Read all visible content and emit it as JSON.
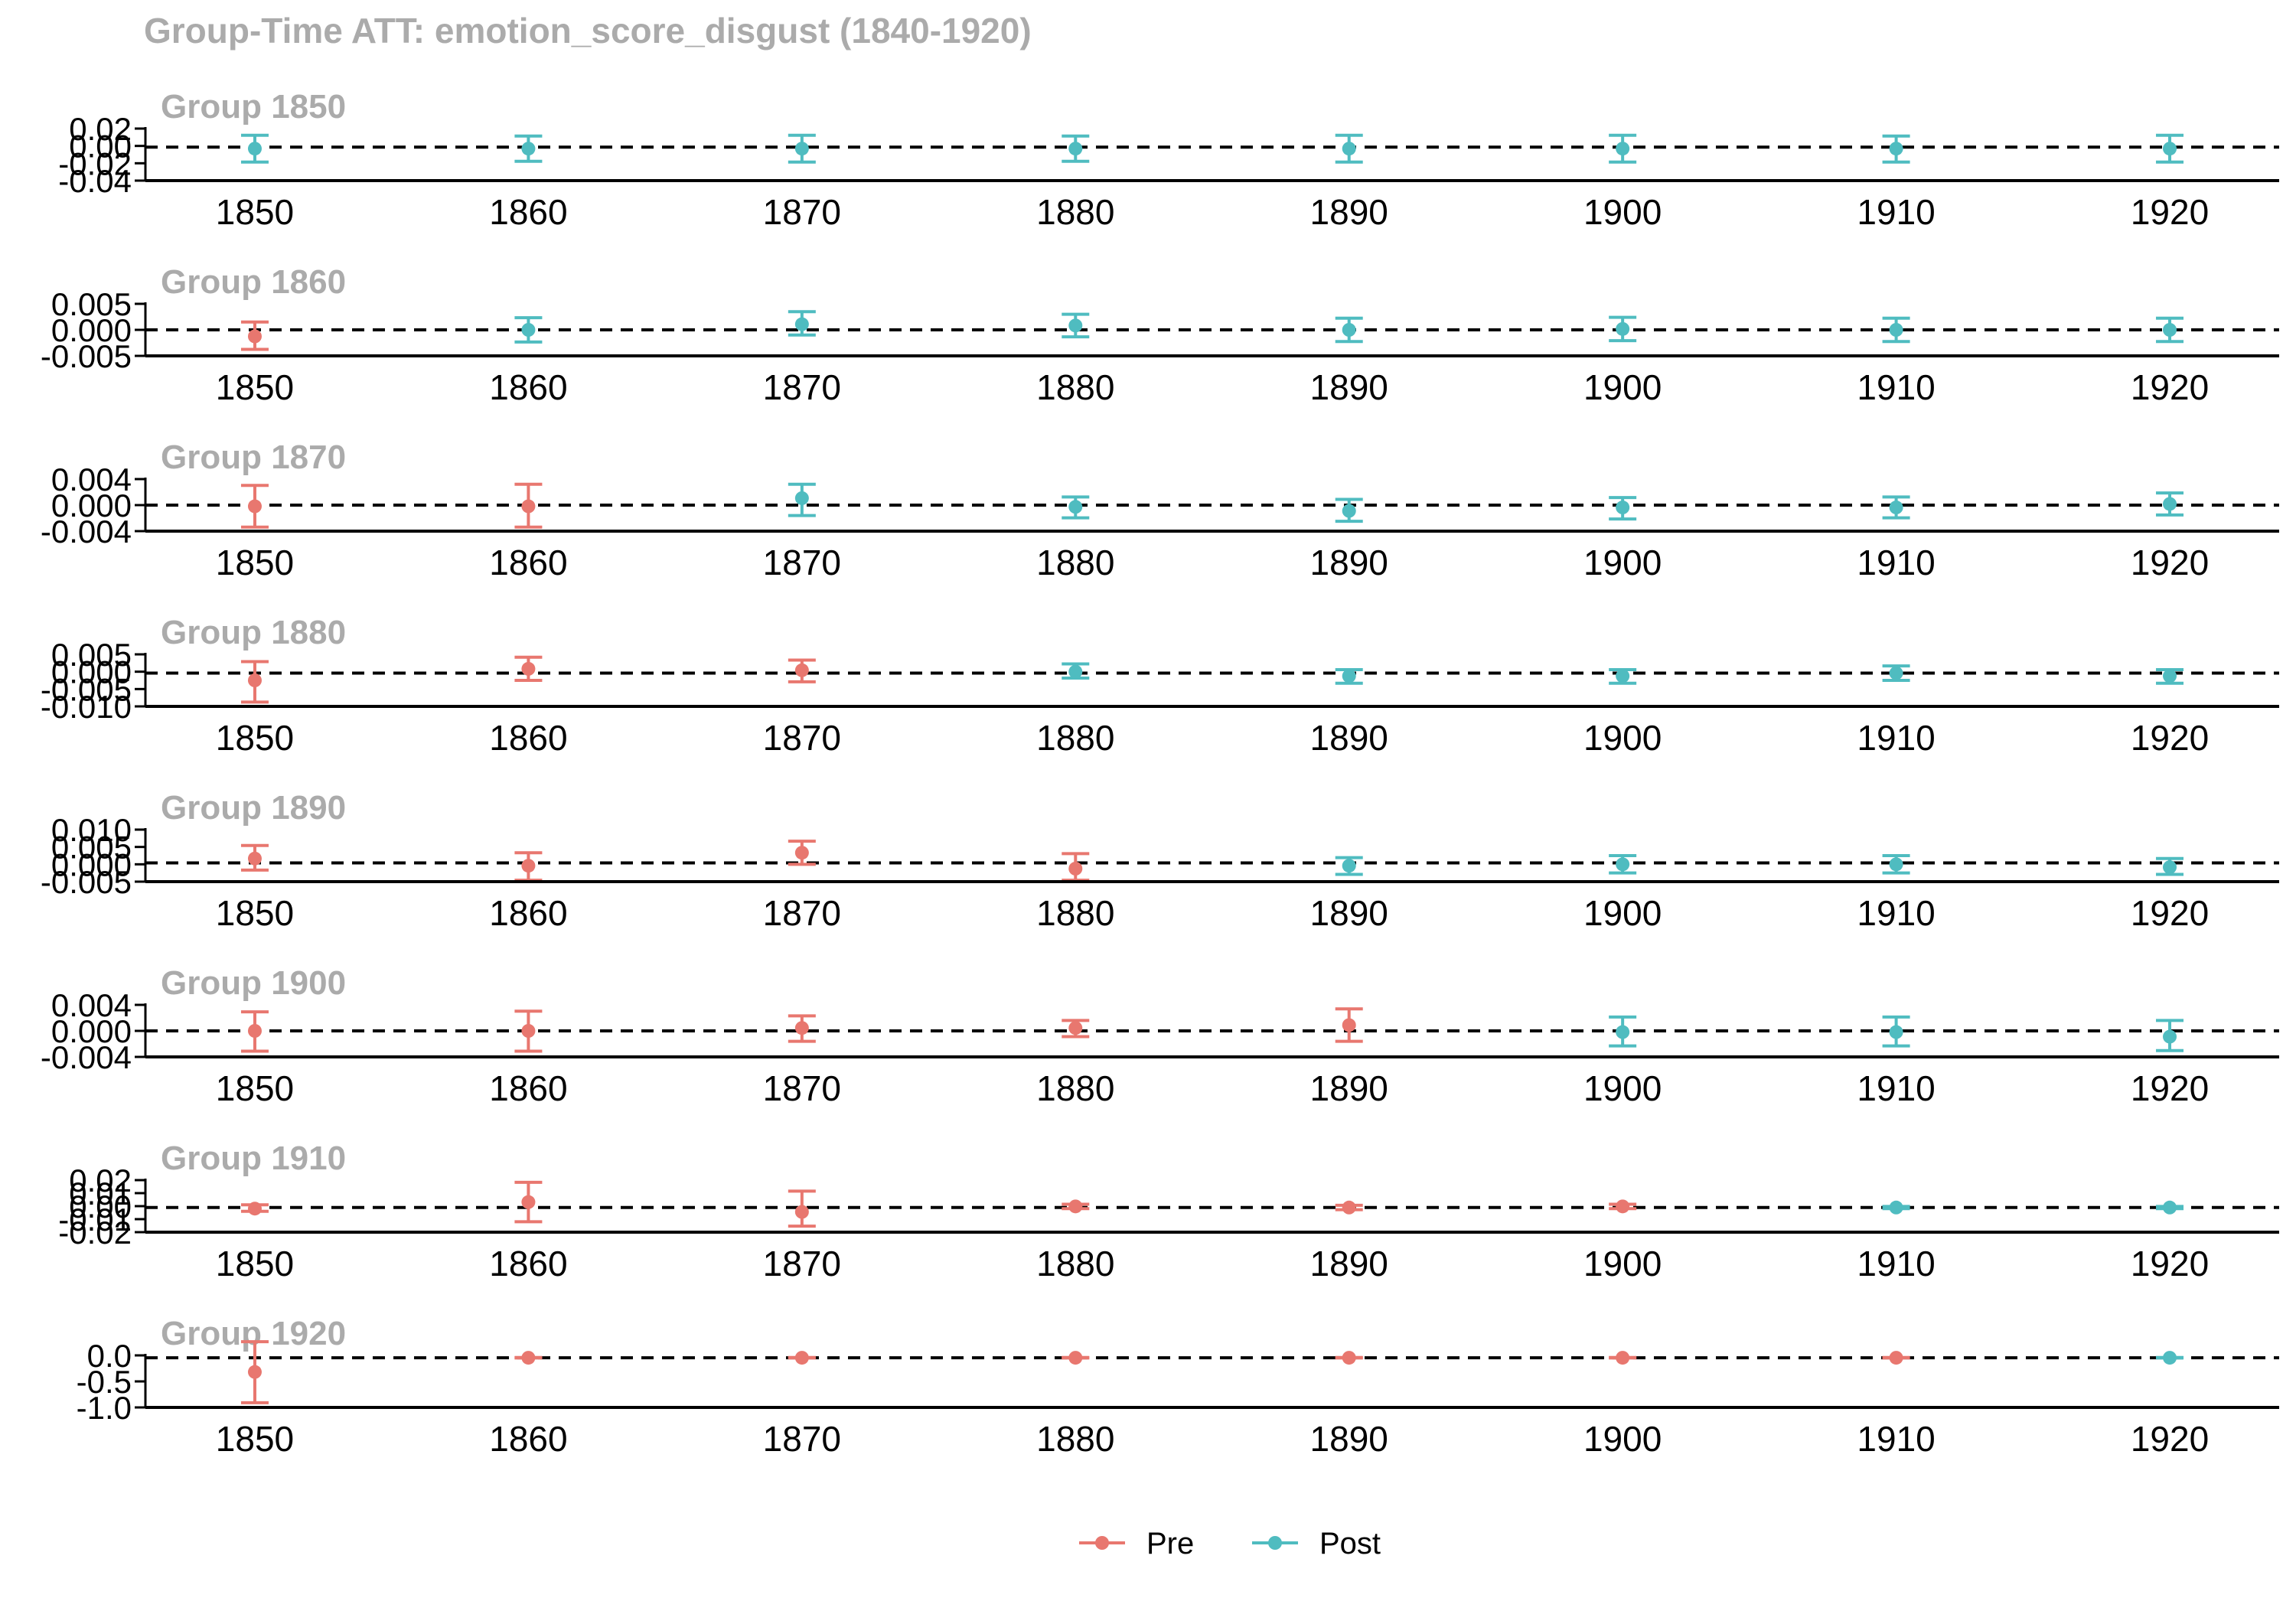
{
  "chart_data": {
    "type": "scatter",
    "title": "Group-Time ATT: emotion_score_disgust (1840-1920)",
    "x_ticks": [
      1850,
      1860,
      1870,
      1880,
      1890,
      1900,
      1910,
      1920
    ],
    "xlim": [
      1846,
      1924
    ],
    "legend": {
      "placement": "bottom",
      "items": [
        {
          "name": "Pre",
          "color": "#e8776f"
        },
        {
          "name": "Post",
          "color": "#4fbcc0"
        }
      ]
    },
    "panels": [
      {
        "title": "Group 1850",
        "tick_labels": [
          "0.02",
          "0.00",
          "-0.02",
          "-0.04"
        ],
        "ylim": [
          -0.045,
          0.025
        ],
        "points": [
          {
            "x": 1850,
            "y": -0.002,
            "lo": -0.02,
            "hi": 0.016,
            "period": "Post"
          },
          {
            "x": 1860,
            "y": -0.002,
            "lo": -0.019,
            "hi": 0.015,
            "period": "Post"
          },
          {
            "x": 1870,
            "y": -0.002,
            "lo": -0.02,
            "hi": 0.016,
            "period": "Post"
          },
          {
            "x": 1880,
            "y": -0.002,
            "lo": -0.019,
            "hi": 0.015,
            "period": "Post"
          },
          {
            "x": 1890,
            "y": -0.002,
            "lo": -0.02,
            "hi": 0.016,
            "period": "Post"
          },
          {
            "x": 1900,
            "y": -0.002,
            "lo": -0.02,
            "hi": 0.016,
            "period": "Post"
          },
          {
            "x": 1910,
            "y": -0.002,
            "lo": -0.02,
            "hi": 0.015,
            "period": "Post"
          },
          {
            "x": 1920,
            "y": -0.002,
            "lo": -0.02,
            "hi": 0.016,
            "period": "Post"
          }
        ]
      },
      {
        "title": "Group 1860",
        "tick_labels": [
          "0.005",
          "0.000",
          "-0.005"
        ],
        "ylim": [
          -0.006,
          0.006
        ],
        "points": [
          {
            "x": 1850,
            "y": -0.0015,
            "lo": -0.0045,
            "hi": 0.0018,
            "period": "Pre"
          },
          {
            "x": 1860,
            "y": 0.0,
            "lo": -0.0028,
            "hi": 0.0028,
            "period": "Post"
          },
          {
            "x": 1870,
            "y": 0.0013,
            "lo": -0.0012,
            "hi": 0.0042,
            "period": "Post"
          },
          {
            "x": 1880,
            "y": 0.001,
            "lo": -0.0016,
            "hi": 0.0036,
            "period": "Post"
          },
          {
            "x": 1890,
            "y": 0.0,
            "lo": -0.0027,
            "hi": 0.0027,
            "period": "Post"
          },
          {
            "x": 1900,
            "y": 0.0002,
            "lo": -0.0025,
            "hi": 0.0029,
            "period": "Post"
          },
          {
            "x": 1910,
            "y": 0.0,
            "lo": -0.0027,
            "hi": 0.0027,
            "period": "Post"
          },
          {
            "x": 1920,
            "y": 0.0,
            "lo": -0.0027,
            "hi": 0.0027,
            "period": "Post"
          }
        ]
      },
      {
        "title": "Group 1870",
        "tick_labels": [
          "0.004",
          "0.000",
          "-0.004"
        ],
        "ylim": [
          -0.0045,
          0.0045
        ],
        "points": [
          {
            "x": 1850,
            "y": -0.0002,
            "lo": -0.0038,
            "hi": 0.0034,
            "period": "Pre"
          },
          {
            "x": 1860,
            "y": -0.0002,
            "lo": -0.0038,
            "hi": 0.0036,
            "period": "Pre"
          },
          {
            "x": 1870,
            "y": 0.0012,
            "lo": -0.0018,
            "hi": 0.0036,
            "period": "Post"
          },
          {
            "x": 1880,
            "y": -0.0003,
            "lo": -0.0022,
            "hi": 0.0014,
            "period": "Post"
          },
          {
            "x": 1890,
            "y": -0.001,
            "lo": -0.0028,
            "hi": 0.001,
            "period": "Post"
          },
          {
            "x": 1900,
            "y": -0.0004,
            "lo": -0.0024,
            "hi": 0.0013,
            "period": "Post"
          },
          {
            "x": 1910,
            "y": -0.0004,
            "lo": -0.0022,
            "hi": 0.0014,
            "period": "Post"
          },
          {
            "x": 1920,
            "y": 0.0002,
            "lo": -0.0017,
            "hi": 0.0021,
            "period": "Post"
          }
        ]
      },
      {
        "title": "Group 1880",
        "tick_labels": [
          "0.005",
          "0.000",
          "-0.005",
          "-0.010"
        ],
        "ylim": [
          -0.0115,
          0.0065
        ],
        "points": [
          {
            "x": 1850,
            "y": -0.0025,
            "lo": -0.01,
            "hi": 0.004,
            "period": "Pre"
          },
          {
            "x": 1860,
            "y": 0.0015,
            "lo": -0.0025,
            "hi": 0.0055,
            "period": "Pre"
          },
          {
            "x": 1870,
            "y": 0.001,
            "lo": -0.003,
            "hi": 0.0045,
            "period": "Pre"
          },
          {
            "x": 1880,
            "y": 0.0005,
            "lo": -0.0017,
            "hi": 0.0032,
            "period": "Post"
          },
          {
            "x": 1890,
            "y": -0.001,
            "lo": -0.0035,
            "hi": 0.0012,
            "period": "Post"
          },
          {
            "x": 1900,
            "y": -0.001,
            "lo": -0.0035,
            "hi": 0.0012,
            "period": "Post"
          },
          {
            "x": 1910,
            "y": 0.0,
            "lo": -0.0025,
            "hi": 0.0025,
            "period": "Post"
          },
          {
            "x": 1920,
            "y": -0.001,
            "lo": -0.0035,
            "hi": 0.0012,
            "period": "Post"
          }
        ]
      },
      {
        "title": "Group 1890",
        "tick_labels": [
          "0.010",
          "0.005",
          "0.000",
          "-0.005"
        ],
        "ylim": [
          -0.0065,
          0.0115
        ],
        "points": [
          {
            "x": 1850,
            "y": 0.0015,
            "lo": -0.0025,
            "hi": 0.006,
            "period": "Pre"
          },
          {
            "x": 1860,
            "y": -0.001,
            "lo": -0.006,
            "hi": 0.0035,
            "period": "Pre"
          },
          {
            "x": 1870,
            "y": 0.0035,
            "lo": -0.0005,
            "hi": 0.0075,
            "period": "Pre"
          },
          {
            "x": 1880,
            "y": -0.002,
            "lo": -0.006,
            "hi": 0.0032,
            "period": "Pre"
          },
          {
            "x": 1890,
            "y": -0.001,
            "lo": -0.004,
            "hi": 0.0018,
            "period": "Post"
          },
          {
            "x": 1900,
            "y": -0.0005,
            "lo": -0.0035,
            "hi": 0.0025,
            "period": "Post"
          },
          {
            "x": 1910,
            "y": -0.0005,
            "lo": -0.0035,
            "hi": 0.0025,
            "period": "Post"
          },
          {
            "x": 1920,
            "y": -0.0015,
            "lo": -0.004,
            "hi": 0.0015,
            "period": "Post"
          }
        ]
      },
      {
        "title": "Group 1900",
        "tick_labels": [
          "0.004",
          "0.000",
          "-0.004"
        ],
        "ylim": [
          -0.0045,
          0.0045
        ],
        "points": [
          {
            "x": 1850,
            "y": 0.0,
            "lo": -0.0035,
            "hi": 0.0033,
            "period": "Pre"
          },
          {
            "x": 1860,
            "y": 0.0,
            "lo": -0.0035,
            "hi": 0.0034,
            "period": "Pre"
          },
          {
            "x": 1870,
            "y": 0.0005,
            "lo": -0.0018,
            "hi": 0.0026,
            "period": "Pre"
          },
          {
            "x": 1880,
            "y": 0.0005,
            "lo": -0.001,
            "hi": 0.0018,
            "period": "Pre"
          },
          {
            "x": 1890,
            "y": 0.001,
            "lo": -0.0018,
            "hi": 0.0038,
            "period": "Pre"
          },
          {
            "x": 1900,
            "y": -0.0002,
            "lo": -0.0026,
            "hi": 0.0024,
            "period": "Post"
          },
          {
            "x": 1910,
            "y": -0.0002,
            "lo": -0.0026,
            "hi": 0.0024,
            "period": "Post"
          },
          {
            "x": 1920,
            "y": -0.001,
            "lo": -0.0034,
            "hi": 0.0018,
            "period": "Post"
          }
        ]
      },
      {
        "title": "Group 1910",
        "tick_labels": [
          "0.02",
          "0.01",
          "0.00",
          "-0.01",
          "-0.02"
        ],
        "ylim": [
          -0.0225,
          0.025
        ],
        "points": [
          {
            "x": 1850,
            "y": -0.001,
            "lo": -0.0035,
            "hi": 0.0025,
            "period": "Pre"
          },
          {
            "x": 1860,
            "y": 0.005,
            "lo": -0.013,
            "hi": 0.023,
            "period": "Pre"
          },
          {
            "x": 1870,
            "y": -0.004,
            "lo": -0.017,
            "hi": 0.015,
            "period": "Pre"
          },
          {
            "x": 1880,
            "y": 0.001,
            "lo": -0.001,
            "hi": 0.003,
            "period": "Pre"
          },
          {
            "x": 1890,
            "y": 0.0,
            "lo": -0.002,
            "hi": 0.002,
            "period": "Pre"
          },
          {
            "x": 1900,
            "y": 0.001,
            "lo": -0.001,
            "hi": 0.003,
            "period": "Pre"
          },
          {
            "x": 1910,
            "y": 0.0,
            "lo": -0.001,
            "hi": 0.001,
            "period": "Post"
          },
          {
            "x": 1920,
            "y": 0.0,
            "lo": -0.001,
            "hi": 0.001,
            "period": "Post"
          }
        ]
      },
      {
        "title": "Group 1920",
        "tick_labels": [
          "0.0",
          "-0.5",
          "-1.0"
        ],
        "ylim": [
          -1.05,
          0.05
        ],
        "points": [
          {
            "x": 1850,
            "y": -0.3,
            "lo": -0.95,
            "hi": 0.34,
            "period": "Pre"
          },
          {
            "x": 1860,
            "y": 0.0,
            "lo": -0.005,
            "hi": 0.005,
            "period": "Pre"
          },
          {
            "x": 1870,
            "y": 0.0,
            "lo": -0.005,
            "hi": 0.005,
            "period": "Pre"
          },
          {
            "x": 1880,
            "y": 0.0,
            "lo": -0.005,
            "hi": 0.005,
            "period": "Pre"
          },
          {
            "x": 1890,
            "y": 0.0,
            "lo": -0.005,
            "hi": 0.005,
            "period": "Pre"
          },
          {
            "x": 1900,
            "y": 0.0,
            "lo": -0.005,
            "hi": 0.005,
            "period": "Pre"
          },
          {
            "x": 1910,
            "y": 0.0,
            "lo": -0.005,
            "hi": 0.005,
            "period": "Pre"
          },
          {
            "x": 1920,
            "y": 0.0,
            "lo": -0.005,
            "hi": 0.005,
            "period": "Post"
          }
        ]
      }
    ]
  }
}
